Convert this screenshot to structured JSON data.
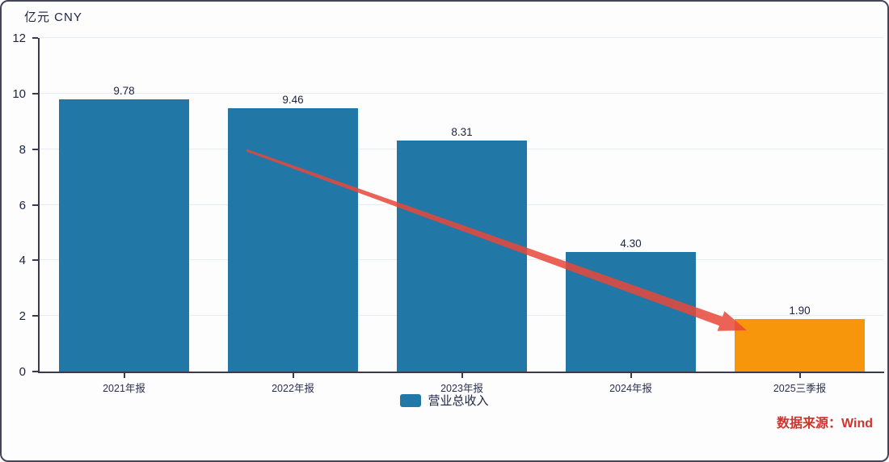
{
  "unit_label": "亿元  CNY",
  "colors": {
    "bar_blue": "#2177a6",
    "bar_orange": "#f7960a",
    "axis": "#3a3a4e",
    "grid": "#e2edf6",
    "text": "#1c2340",
    "source_red": "#d0342c",
    "arrow_red": "#e8463a"
  },
  "legend": {
    "label": "营业总收入"
  },
  "source": {
    "label": "数据来源：Wind"
  },
  "chart_data": {
    "type": "bar",
    "title": "",
    "unit_label": "亿元  CNY",
    "categories": [
      "2021年报",
      "2022年报",
      "2023年报",
      "2024年报",
      "2025三季报"
    ],
    "values": [
      9.78,
      9.46,
      8.31,
      4.3,
      1.9
    ],
    "value_labels": [
      "9.78",
      "9.46",
      "8.31",
      "4.30",
      "1.90"
    ],
    "series_name": "营业总收入",
    "xlabel": "",
    "ylabel": "亿元 CNY",
    "ylim": [
      0,
      12
    ],
    "ytick_step": 2,
    "yticks": [
      0,
      2,
      4,
      6,
      8,
      10,
      12
    ],
    "highlight_index": 4,
    "grid": "horizontal",
    "legend_position": "bottom",
    "annotation": "red decline arrow from first bars down to highlighted 2025 bar",
    "source_note": "数据来源：Wind"
  }
}
